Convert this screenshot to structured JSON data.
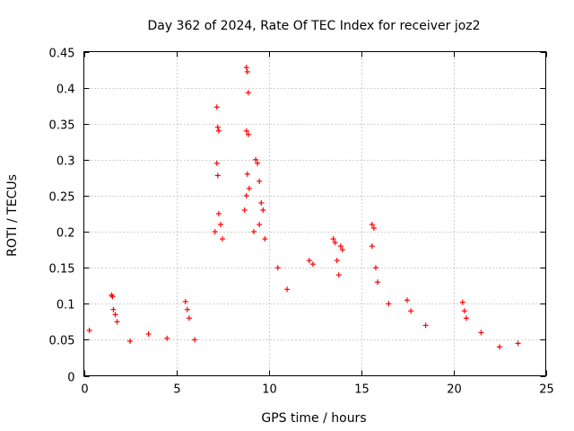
{
  "chart_data": {
    "type": "scatter",
    "title": "Day 362 of 2024, Rate Of TEC Index for receiver joz2",
    "xlabel": "GPS time / hours",
    "ylabel": "ROTI / TECUs",
    "xlim": [
      0,
      25
    ],
    "ylim": [
      0,
      0.45
    ],
    "xticks": [
      0,
      5,
      10,
      15,
      20,
      25
    ],
    "yticks": [
      0,
      0.05,
      0.1,
      0.15,
      0.2,
      0.25,
      0.3,
      0.35,
      0.4,
      0.45
    ],
    "xtick_labels": [
      "0",
      "5",
      "10",
      "15",
      "20",
      "25"
    ],
    "ytick_labels": [
      "0",
      "0.05",
      "0.1",
      "0.15",
      "0.2",
      "0.25",
      "0.3",
      "0.35",
      "0.4",
      "0.45"
    ],
    "grid": true,
    "marker": "+",
    "color": "#ff0000",
    "series": [
      {
        "name": "ROTI",
        "points": [
          [
            1.5,
            0.112
          ],
          [
            1.55,
            0.11
          ],
          [
            1.6,
            0.092
          ],
          [
            1.7,
            0.085
          ],
          [
            1.8,
            0.075
          ],
          [
            5.5,
            0.103
          ],
          [
            5.6,
            0.092
          ],
          [
            5.7,
            0.08
          ],
          [
            7.2,
            0.373
          ],
          [
            7.25,
            0.345
          ],
          [
            7.3,
            0.34
          ],
          [
            7.2,
            0.295
          ],
          [
            7.25,
            0.278
          ],
          [
            7.3,
            0.225
          ],
          [
            7.4,
            0.21
          ],
          [
            7.1,
            0.2
          ],
          [
            7.5,
            0.19
          ],
          [
            8.8,
            0.428
          ],
          [
            8.85,
            0.422
          ],
          [
            8.9,
            0.393
          ],
          [
            8.8,
            0.34
          ],
          [
            8.9,
            0.335
          ],
          [
            8.85,
            0.28
          ],
          [
            8.95,
            0.26
          ],
          [
            8.8,
            0.25
          ],
          [
            8.7,
            0.23
          ],
          [
            9.3,
            0.3
          ],
          [
            9.4,
            0.295
          ],
          [
            9.5,
            0.27
          ],
          [
            9.6,
            0.24
          ],
          [
            9.7,
            0.23
          ],
          [
            9.5,
            0.21
          ],
          [
            9.2,
            0.2
          ],
          [
            9.8,
            0.19
          ],
          [
            12.2,
            0.16
          ],
          [
            12.4,
            0.155
          ],
          [
            13.5,
            0.19
          ],
          [
            13.6,
            0.185
          ],
          [
            13.7,
            0.16
          ],
          [
            13.9,
            0.18
          ],
          [
            14.0,
            0.175
          ],
          [
            13.8,
            0.14
          ],
          [
            15.6,
            0.21
          ],
          [
            15.7,
            0.205
          ],
          [
            15.6,
            0.18
          ],
          [
            15.8,
            0.15
          ],
          [
            15.9,
            0.13
          ],
          [
            16.5,
            0.1
          ],
          [
            17.5,
            0.105
          ],
          [
            17.7,
            0.09
          ],
          [
            18.5,
            0.07
          ],
          [
            20.5,
            0.102
          ],
          [
            20.6,
            0.09
          ],
          [
            20.7,
            0.08
          ],
          [
            21.5,
            0.06
          ],
          [
            0.3,
            0.063
          ],
          [
            2.5,
            0.048
          ],
          [
            3.5,
            0.058
          ],
          [
            4.5,
            0.052
          ],
          [
            6.0,
            0.05
          ],
          [
            11.0,
            0.12
          ],
          [
            10.5,
            0.15
          ],
          [
            22.5,
            0.04
          ],
          [
            23.5,
            0.045
          ]
        ]
      }
    ]
  }
}
